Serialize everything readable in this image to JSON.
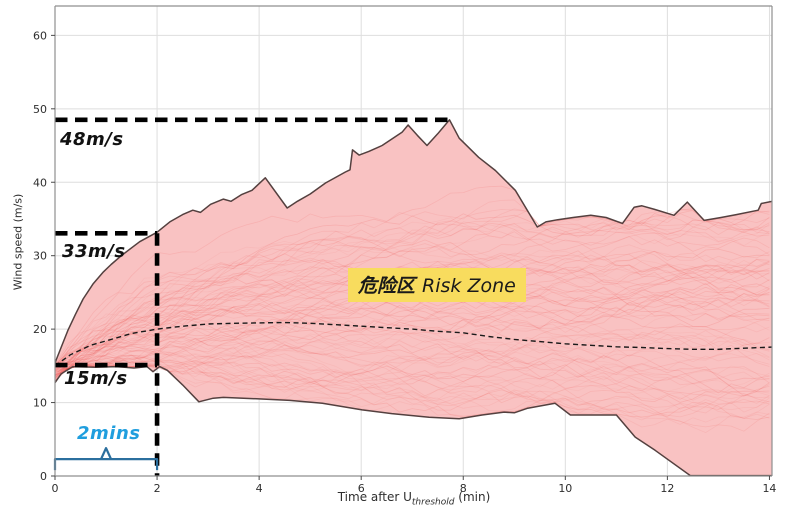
{
  "chart_data": {
    "type": "area",
    "title": "",
    "ylabel": "Wind speed (m/s)",
    "xlabel": {
      "prefix": "Time after U",
      "subscript": "threshold",
      "suffix": " (min)"
    },
    "xlim": [
      0,
      14.05
    ],
    "ylim": [
      0,
      64
    ],
    "x_ticks": [
      0,
      2,
      4,
      6,
      8,
      10,
      12,
      14
    ],
    "y_ticks": [
      0,
      10,
      20,
      30,
      40,
      50,
      60
    ],
    "grid": true,
    "legend": false,
    "series": [
      {
        "name": "upper_gust_envelope",
        "role": "envelope-upper",
        "points": [
          [
            0,
            15.4
          ],
          [
            0.12,
            17.5
          ],
          [
            0.25,
            19.8
          ],
          [
            0.4,
            22.0
          ],
          [
            0.55,
            24.1
          ],
          [
            0.75,
            26.2
          ],
          [
            0.95,
            27.8
          ],
          [
            1.1,
            28.8
          ],
          [
            1.3,
            30.0
          ],
          [
            1.66,
            31.9
          ],
          [
            2.0,
            33.2
          ],
          [
            2.25,
            34.6
          ],
          [
            2.5,
            35.6
          ],
          [
            2.7,
            36.2
          ],
          [
            2.85,
            35.9
          ],
          [
            3.05,
            37.0
          ],
          [
            3.3,
            37.7
          ],
          [
            3.45,
            37.4
          ],
          [
            3.65,
            38.3
          ],
          [
            3.86,
            38.9
          ],
          [
            4.12,
            40.6
          ],
          [
            4.55,
            36.5
          ],
          [
            4.75,
            37.4
          ],
          [
            5.0,
            38.4
          ],
          [
            5.3,
            39.9
          ],
          [
            5.69,
            41.4
          ],
          [
            5.78,
            41.7
          ],
          [
            5.83,
            44.4
          ],
          [
            5.96,
            43.7
          ],
          [
            6.15,
            44.2
          ],
          [
            6.41,
            45.0
          ],
          [
            6.8,
            46.8
          ],
          [
            6.92,
            47.8
          ],
          [
            7.1,
            46.4
          ],
          [
            7.29,
            45.0
          ],
          [
            7.5,
            46.6
          ],
          [
            7.73,
            48.5
          ],
          [
            7.92,
            46.0
          ],
          [
            8.3,
            43.4
          ],
          [
            8.63,
            41.6
          ],
          [
            9.02,
            38.9
          ],
          [
            9.45,
            33.9
          ],
          [
            9.62,
            34.6
          ],
          [
            9.85,
            34.9
          ],
          [
            10.15,
            35.2
          ],
          [
            10.5,
            35.5
          ],
          [
            10.8,
            35.2
          ],
          [
            11.12,
            34.4
          ],
          [
            11.35,
            36.6
          ],
          [
            11.5,
            36.8
          ],
          [
            11.75,
            36.3
          ],
          [
            12.13,
            35.5
          ],
          [
            12.39,
            37.3
          ],
          [
            12.72,
            34.8
          ],
          [
            13.05,
            35.2
          ],
          [
            13.35,
            35.6
          ],
          [
            13.78,
            36.2
          ],
          [
            13.84,
            37.1
          ],
          [
            14.05,
            37.4
          ]
        ]
      },
      {
        "name": "lower_gust_envelope",
        "role": "envelope-lower",
        "points": [
          [
            0,
            12.7
          ],
          [
            0.12,
            13.9
          ],
          [
            0.35,
            14.9
          ],
          [
            0.8,
            14.8
          ],
          [
            1.2,
            14.9
          ],
          [
            1.55,
            14.7
          ],
          [
            1.8,
            14.9
          ],
          [
            1.92,
            14.2
          ],
          [
            2.05,
            14.9
          ],
          [
            2.2,
            14.4
          ],
          [
            2.5,
            12.4
          ],
          [
            2.82,
            10.1
          ],
          [
            3.1,
            10.6
          ],
          [
            3.3,
            10.7
          ],
          [
            4.0,
            10.5
          ],
          [
            4.6,
            10.3
          ],
          [
            5.24,
            9.9
          ],
          [
            6.02,
            9.0
          ],
          [
            6.6,
            8.5
          ],
          [
            7.33,
            8.0
          ],
          [
            7.92,
            7.8
          ],
          [
            8.37,
            8.3
          ],
          [
            8.8,
            8.7
          ],
          [
            9.0,
            8.6
          ],
          [
            9.25,
            9.2
          ],
          [
            9.8,
            9.9
          ],
          [
            10.1,
            8.3
          ],
          [
            11.0,
            8.3
          ],
          [
            11.37,
            5.3
          ],
          [
            11.76,
            3.5
          ],
          [
            12.45,
            0.05
          ],
          [
            14.05,
            0.05
          ]
        ]
      },
      {
        "name": "mean_wind_speed",
        "role": "mean",
        "style": "dashed",
        "points": [
          [
            0,
            15.0
          ],
          [
            0.3,
            16.5
          ],
          [
            0.7,
            17.8
          ],
          [
            1.0,
            18.4
          ],
          [
            1.5,
            19.4
          ],
          [
            2.0,
            20.0
          ],
          [
            2.5,
            20.4
          ],
          [
            3.0,
            20.7
          ],
          [
            3.5,
            20.8
          ],
          [
            4.0,
            20.85
          ],
          [
            4.5,
            20.9
          ],
          [
            5.0,
            20.8
          ],
          [
            5.5,
            20.6
          ],
          [
            6.0,
            20.4
          ],
          [
            6.5,
            20.2
          ],
          [
            7.0,
            20.0
          ],
          [
            7.5,
            19.7
          ],
          [
            8.0,
            19.5
          ],
          [
            8.5,
            19.0
          ],
          [
            9.0,
            18.6
          ],
          [
            9.5,
            18.3
          ],
          [
            10.0,
            18.0
          ],
          [
            10.5,
            17.8
          ],
          [
            11.0,
            17.6
          ],
          [
            11.5,
            17.5
          ],
          [
            12.0,
            17.35
          ],
          [
            12.5,
            17.25
          ],
          [
            13.0,
            17.25
          ],
          [
            13.5,
            17.4
          ],
          [
            14.05,
            17.55
          ]
        ]
      }
    ],
    "guides": {
      "peak_gust": {
        "y": 48.5,
        "x_from": 0,
        "x_to": 7.73
      },
      "gust_at_2min": {
        "y": 33.05,
        "x_from": 0,
        "x_to": 2
      },
      "threshold_speed": {
        "y": 15.1,
        "x_from": 0,
        "x_to": 2
      },
      "elapsed_2min": {
        "x": 2,
        "y_from": 0,
        "y_to": 33.05
      },
      "duration_bracket": {
        "x_from": 0,
        "x_to": 2,
        "y": 2.3
      }
    },
    "traces": {
      "count": 85,
      "seed": 42,
      "description": "ensemble wind-speed traces fanning out from 15 m/s"
    }
  },
  "annotations": {
    "peak_gust_label": "48m/s",
    "gust_2min_label": "33m/s",
    "threshold_label": "15m/s",
    "duration_label": "2mins",
    "risk_zone_cn": "危险区",
    "risk_zone_en": "Risk Zone"
  },
  "colors": {
    "envelope_fill": "#f9c2c2",
    "envelope_edge": "#54403f",
    "trace": "#ef5350",
    "mean_line": "#1a1a1a",
    "guide_dash": "#000000",
    "bracket": "#2b6f9e",
    "duration_text": "#1f9ede",
    "risk_zone_bg": "#f8dc5e",
    "risk_zone_text": "#1a1a1a",
    "grid": "#dedede",
    "spine": "#8f8f8f",
    "tick_text": "#2e2e2e"
  }
}
